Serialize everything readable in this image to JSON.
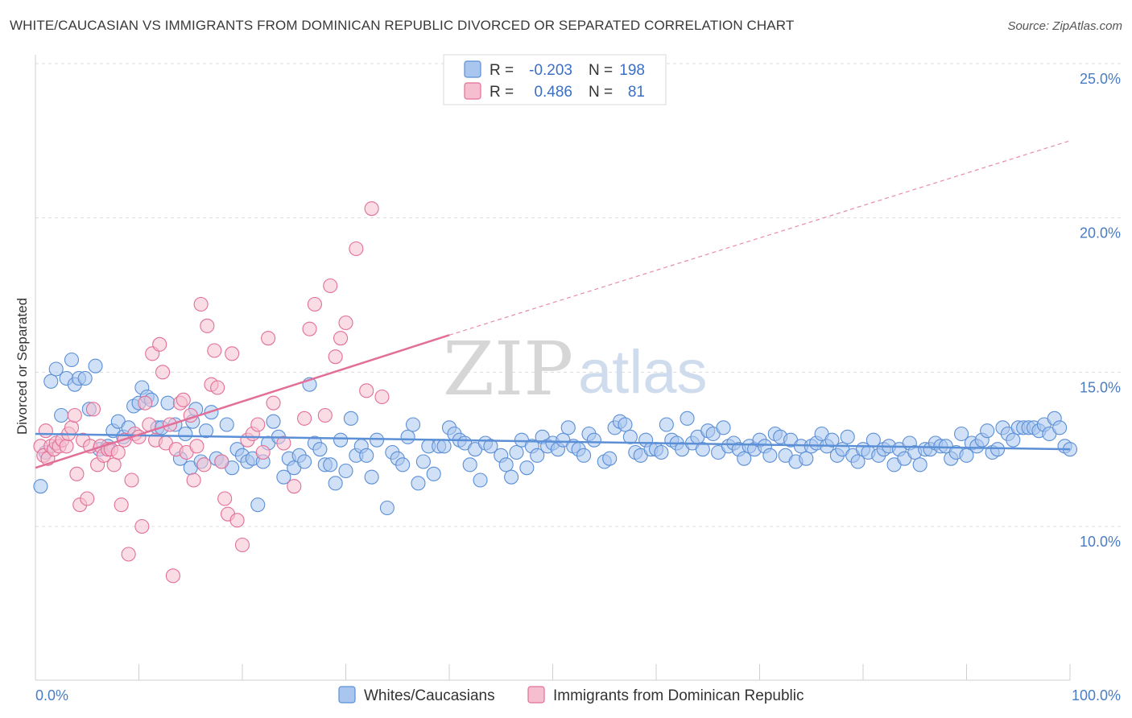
{
  "title": "WHITE/CAUCASIAN VS IMMIGRANTS FROM DOMINICAN REPUBLIC DIVORCED OR SEPARATED CORRELATION CHART",
  "source": "Source: ZipAtlas.com",
  "watermark": {
    "zip": "ZIP",
    "atlas": "atlas"
  },
  "colors": {
    "blue": "#5b8fd6",
    "blue_fill": "#a9c6ef",
    "pink": "#e26f98",
    "pink_fill": "#f6bfd0",
    "axis_text": "#4a7cc4"
  },
  "legend": {
    "r_label": "R =",
    "n_label": "N =",
    "rows": [
      {
        "r": "-0.203",
        "n": "198"
      },
      {
        "r": "0.486",
        "n": "81"
      }
    ]
  },
  "chart_data": {
    "type": "scatter",
    "title": "WHITE/CAUCASIAN VS IMMIGRANTS FROM DOMINICAN REPUBLIC DIVORCED OR SEPARATED CORRELATION CHART",
    "ylabel": "Divorced or Separated",
    "xlabel": "",
    "x_ticks": [
      "0.0%",
      "100.0%"
    ],
    "y_ticks": [
      "10.0%",
      "15.0%",
      "20.0%",
      "25.0%"
    ],
    "xlim": [
      0,
      100
    ],
    "ylim": [
      5,
      26
    ],
    "grid": true,
    "legend_position": "top-center",
    "series": [
      {
        "name": "Whites/Caucasians",
        "r": -0.203,
        "n": 198,
        "trend": {
          "x": [
            0,
            100
          ],
          "y": [
            13.0,
            12.5
          ]
        },
        "points": [
          [
            0.5,
            11.3
          ],
          [
            1,
            12.4
          ],
          [
            1.5,
            14.7
          ],
          [
            2,
            15.1
          ],
          [
            2.5,
            13.6
          ],
          [
            3,
            14.8
          ],
          [
            3.5,
            15.4
          ],
          [
            3.8,
            14.6
          ],
          [
            4.2,
            14.8
          ],
          [
            4.8,
            14.8
          ],
          [
            5.2,
            13.8
          ],
          [
            5.8,
            15.2
          ],
          [
            6.2,
            12.5
          ],
          [
            7,
            12.6
          ],
          [
            7.5,
            13.1
          ],
          [
            8,
            13.4
          ],
          [
            8.5,
            12.9
          ],
          [
            9,
            13.2
          ],
          [
            9.5,
            13.9
          ],
          [
            10,
            14.0
          ],
          [
            10.3,
            14.5
          ],
          [
            10.8,
            14.2
          ],
          [
            11.2,
            14.1
          ],
          [
            11.8,
            13.2
          ],
          [
            12.2,
            13.2
          ],
          [
            12.8,
            14.0
          ],
          [
            13.5,
            13.3
          ],
          [
            14,
            12.2
          ],
          [
            14.5,
            13.0
          ],
          [
            15,
            11.9
          ],
          [
            15.2,
            13.4
          ],
          [
            15.5,
            13.8
          ],
          [
            16,
            12.1
          ],
          [
            16.5,
            13.1
          ],
          [
            17,
            13.7
          ],
          [
            17.5,
            12.2
          ],
          [
            18,
            12.1
          ],
          [
            18.5,
            13.3
          ],
          [
            19,
            11.9
          ],
          [
            19.5,
            12.5
          ],
          [
            20,
            12.3
          ],
          [
            20.5,
            12.1
          ],
          [
            21,
            12.2
          ],
          [
            21.5,
            10.7
          ],
          [
            22,
            12.1
          ],
          [
            22.5,
            12.7
          ],
          [
            23,
            13.4
          ],
          [
            23.5,
            12.9
          ],
          [
            24,
            11.6
          ],
          [
            24.5,
            12.2
          ],
          [
            25,
            11.9
          ],
          [
            25.5,
            12.3
          ],
          [
            26,
            12.1
          ],
          [
            26.5,
            14.6
          ],
          [
            27,
            12.7
          ],
          [
            27.5,
            12.5
          ],
          [
            28,
            12.0
          ],
          [
            28.5,
            12.0
          ],
          [
            29,
            11.4
          ],
          [
            29.5,
            12.8
          ],
          [
            30,
            11.8
          ],
          [
            30.5,
            13.5
          ],
          [
            31,
            12.3
          ],
          [
            31.5,
            12.6
          ],
          [
            32,
            12.3
          ],
          [
            32.5,
            11.6
          ],
          [
            33,
            12.8
          ],
          [
            34,
            10.6
          ],
          [
            34.5,
            12.4
          ],
          [
            35,
            12.2
          ],
          [
            35.5,
            12.0
          ],
          [
            36,
            12.9
          ],
          [
            36.5,
            13.3
          ],
          [
            37,
            11.4
          ],
          [
            37.5,
            12.1
          ],
          [
            38,
            12.6
          ],
          [
            38.5,
            11.7
          ],
          [
            39,
            12.6
          ],
          [
            39.5,
            12.6
          ],
          [
            40,
            13.2
          ],
          [
            40.5,
            13.0
          ],
          [
            41,
            12.8
          ],
          [
            41.5,
            12.7
          ],
          [
            42,
            12.0
          ],
          [
            42.5,
            12.5
          ],
          [
            43,
            11.5
          ],
          [
            43.5,
            12.7
          ],
          [
            44,
            12.6
          ],
          [
            45,
            12.3
          ],
          [
            45.5,
            12.0
          ],
          [
            46,
            11.6
          ],
          [
            46.5,
            12.4
          ],
          [
            47,
            12.8
          ],
          [
            47.5,
            11.9
          ],
          [
            48,
            12.6
          ],
          [
            48.5,
            12.3
          ],
          [
            49,
            12.9
          ],
          [
            49.5,
            12.6
          ],
          [
            50,
            12.7
          ],
          [
            50.5,
            12.5
          ],
          [
            51,
            12.8
          ],
          [
            51.5,
            13.2
          ],
          [
            52,
            12.6
          ],
          [
            52.5,
            12.5
          ],
          [
            53,
            12.3
          ],
          [
            53.5,
            13.0
          ],
          [
            54,
            12.8
          ],
          [
            55,
            12.1
          ],
          [
            55.5,
            12.2
          ],
          [
            56,
            13.2
          ],
          [
            56.5,
            13.4
          ],
          [
            57,
            13.3
          ],
          [
            57.5,
            12.9
          ],
          [
            58,
            12.4
          ],
          [
            58.5,
            12.3
          ],
          [
            59,
            12.8
          ],
          [
            59.5,
            12.5
          ],
          [
            60,
            12.5
          ],
          [
            60.5,
            12.4
          ],
          [
            61,
            13.3
          ],
          [
            61.5,
            12.8
          ],
          [
            62,
            12.7
          ],
          [
            62.5,
            12.5
          ],
          [
            63,
            13.5
          ],
          [
            63.5,
            12.7
          ],
          [
            64,
            12.9
          ],
          [
            64.5,
            12.5
          ],
          [
            65,
            13.1
          ],
          [
            65.5,
            13.0
          ],
          [
            66,
            12.4
          ],
          [
            66.5,
            13.2
          ],
          [
            67,
            12.6
          ],
          [
            67.5,
            12.7
          ],
          [
            68,
            12.5
          ],
          [
            68.5,
            12.2
          ],
          [
            69,
            12.6
          ],
          [
            69.5,
            12.5
          ],
          [
            70,
            12.8
          ],
          [
            70.5,
            12.6
          ],
          [
            71,
            12.3
          ],
          [
            71.5,
            13.0
          ],
          [
            72,
            12.9
          ],
          [
            72.5,
            12.3
          ],
          [
            73,
            12.8
          ],
          [
            73.5,
            12.1
          ],
          [
            74,
            12.6
          ],
          [
            74.5,
            12.2
          ],
          [
            75,
            12.6
          ],
          [
            75.5,
            12.7
          ],
          [
            76,
            13.0
          ],
          [
            76.5,
            12.6
          ],
          [
            77,
            12.8
          ],
          [
            77.5,
            12.3
          ],
          [
            78,
            12.5
          ],
          [
            78.5,
            12.9
          ],
          [
            79,
            12.3
          ],
          [
            79.5,
            12.1
          ],
          [
            80,
            12.5
          ],
          [
            80.5,
            12.4
          ],
          [
            81,
            12.8
          ],
          [
            81.5,
            12.3
          ],
          [
            82,
            12.5
          ],
          [
            82.5,
            12.6
          ],
          [
            83,
            12.0
          ],
          [
            83.5,
            12.5
          ],
          [
            84,
            12.2
          ],
          [
            84.5,
            12.7
          ],
          [
            85,
            12.4
          ],
          [
            85.5,
            12.0
          ],
          [
            86,
            12.5
          ],
          [
            86.5,
            12.5
          ],
          [
            87,
            12.7
          ],
          [
            87.5,
            12.6
          ],
          [
            88,
            12.6
          ],
          [
            88.5,
            12.2
          ],
          [
            89,
            12.4
          ],
          [
            89.5,
            13.0
          ],
          [
            90,
            12.3
          ],
          [
            90.5,
            12.7
          ],
          [
            91,
            12.6
          ],
          [
            91.5,
            12.8
          ],
          [
            92,
            13.1
          ],
          [
            92.5,
            12.4
          ],
          [
            93,
            12.5
          ],
          [
            93.5,
            13.2
          ],
          [
            94,
            13.0
          ],
          [
            94.5,
            12.8
          ],
          [
            95,
            13.2
          ],
          [
            95.5,
            13.2
          ],
          [
            96,
            13.2
          ],
          [
            96.5,
            13.2
          ],
          [
            97,
            13.1
          ],
          [
            97.5,
            13.3
          ],
          [
            98,
            13.0
          ],
          [
            98.5,
            13.5
          ],
          [
            99,
            13.2
          ],
          [
            99.5,
            12.6
          ],
          [
            100,
            12.5
          ]
        ]
      },
      {
        "name": "Immigrants from Dominican Republic",
        "r": 0.486,
        "n": 81,
        "trend": {
          "x": [
            0,
            40
          ],
          "y": [
            11.9,
            16.2
          ]
        },
        "trend_extension": {
          "x": [
            40,
            100
          ],
          "y": [
            16.2,
            22.5
          ]
        },
        "points": [
          [
            0.5,
            12.6
          ],
          [
            0.8,
            12.3
          ],
          [
            1,
            13.1
          ],
          [
            1.2,
            12.2
          ],
          [
            1.5,
            12.6
          ],
          [
            1.8,
            12.5
          ],
          [
            2,
            12.7
          ],
          [
            2.3,
            12.6
          ],
          [
            2.6,
            12.8
          ],
          [
            3,
            12.6
          ],
          [
            3.2,
            13.0
          ],
          [
            3.5,
            13.2
          ],
          [
            3.8,
            13.6
          ],
          [
            4,
            11.7
          ],
          [
            4.3,
            10.7
          ],
          [
            4.6,
            12.8
          ],
          [
            5,
            10.9
          ],
          [
            5.3,
            12.6
          ],
          [
            5.6,
            13.8
          ],
          [
            6,
            12.0
          ],
          [
            6.3,
            12.6
          ],
          [
            6.6,
            12.3
          ],
          [
            7,
            12.5
          ],
          [
            7.3,
            12.5
          ],
          [
            7.6,
            12.0
          ],
          [
            8,
            12.4
          ],
          [
            8.3,
            10.7
          ],
          [
            8.6,
            12.8
          ],
          [
            9,
            9.1
          ],
          [
            9.3,
            11.5
          ],
          [
            9.6,
            13.0
          ],
          [
            10,
            12.9
          ],
          [
            10.3,
            10.0
          ],
          [
            10.6,
            14.0
          ],
          [
            11,
            13.3
          ],
          [
            11.3,
            15.6
          ],
          [
            11.6,
            12.8
          ],
          [
            12,
            15.9
          ],
          [
            12.3,
            15.0
          ],
          [
            12.6,
            12.7
          ],
          [
            13,
            13.3
          ],
          [
            13.3,
            8.4
          ],
          [
            13.6,
            12.5
          ],
          [
            14,
            14.0
          ],
          [
            14.3,
            14.1
          ],
          [
            14.6,
            12.4
          ],
          [
            15,
            13.6
          ],
          [
            15.3,
            11.5
          ],
          [
            15.6,
            12.6
          ],
          [
            16,
            17.2
          ],
          [
            16.3,
            12.0
          ],
          [
            16.6,
            16.5
          ],
          [
            17,
            14.6
          ],
          [
            17.3,
            15.7
          ],
          [
            17.6,
            14.5
          ],
          [
            18,
            12.1
          ],
          [
            18.3,
            10.9
          ],
          [
            18.6,
            10.4
          ],
          [
            19,
            15.6
          ],
          [
            19.5,
            10.2
          ],
          [
            20,
            9.4
          ],
          [
            20.5,
            12.8
          ],
          [
            21,
            13.0
          ],
          [
            21.5,
            13.3
          ],
          [
            22,
            12.4
          ],
          [
            22.5,
            16.1
          ],
          [
            23,
            14.0
          ],
          [
            24,
            12.7
          ],
          [
            25,
            11.3
          ],
          [
            26,
            13.5
          ],
          [
            26.5,
            16.4
          ],
          [
            27,
            17.2
          ],
          [
            28,
            13.6
          ],
          [
            28.5,
            17.8
          ],
          [
            29,
            15.5
          ],
          [
            29.5,
            16.1
          ],
          [
            30,
            16.6
          ],
          [
            31,
            19.0
          ],
          [
            32,
            14.4
          ],
          [
            32.5,
            20.3
          ],
          [
            33.5,
            14.2
          ]
        ]
      }
    ]
  },
  "axis": {
    "y_label": "Divorced or Separated",
    "x_left": "0.0%",
    "x_right": "100.0%",
    "y_ticks": [
      {
        "value": 10,
        "label": "10.0%"
      },
      {
        "value": 15,
        "label": "15.0%"
      },
      {
        "value": 20,
        "label": "20.0%"
      },
      {
        "value": 25,
        "label": "25.0%"
      }
    ]
  },
  "bottom_legend": [
    {
      "label": "Whites/Caucasians"
    },
    {
      "label": "Immigrants from Dominican Republic"
    }
  ]
}
